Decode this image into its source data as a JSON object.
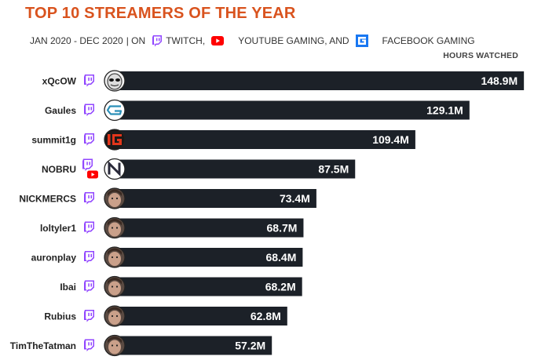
{
  "title": "TOP 10 STREAMERS OF THE YEAR",
  "subtitle": {
    "range": "JAN 2020 - DEC 2020",
    "on": "| ON",
    "twitch": "TWITCH,",
    "youtube": "YOUTUBE GAMING, AND",
    "facebook": "FACEBOOK GAMING"
  },
  "colors": {
    "title": "#d9531e",
    "bar": "#1c2128",
    "twitch": "#9146ff",
    "youtube": "#ff0000",
    "facebook": "#1877f2"
  },
  "chart_data": {
    "type": "bar",
    "orientation": "horizontal",
    "value_label": "HOURS WATCHED",
    "unit": "M",
    "categories": [
      "xQcOW",
      "Gaules",
      "summit1g",
      "NOBRU",
      "NICKMERCS",
      "loltyler1",
      "auronplay",
      "Ibai",
      "Rubius",
      "TimTheTatman"
    ],
    "values": [
      148.9,
      129.1,
      109.4,
      87.5,
      73.4,
      68.7,
      68.4,
      68.2,
      62.8,
      57.2
    ],
    "labels": [
      "148.9M",
      "129.1M",
      "109.4M",
      "87.5M",
      "73.4M",
      "68.7M",
      "68.4M",
      "68.2M",
      "62.8M",
      "57.2M"
    ],
    "platforms": [
      [
        "twitch"
      ],
      [
        "twitch"
      ],
      [
        "twitch"
      ],
      [
        "twitch",
        "youtube"
      ],
      [
        "twitch"
      ],
      [
        "twitch"
      ],
      [
        "twitch"
      ],
      [
        "twitch"
      ],
      [
        "twitch"
      ],
      [
        "twitch"
      ]
    ],
    "avatar_icons": [
      "mask-avatar-icon",
      "gaules-logo-icon",
      "summit1g-logo-icon",
      "nobru-logo-icon",
      "face-avatar-icon",
      "face-avatar-icon",
      "face-avatar-icon",
      "face-avatar-icon",
      "face-avatar-icon",
      "face-avatar-icon"
    ]
  }
}
